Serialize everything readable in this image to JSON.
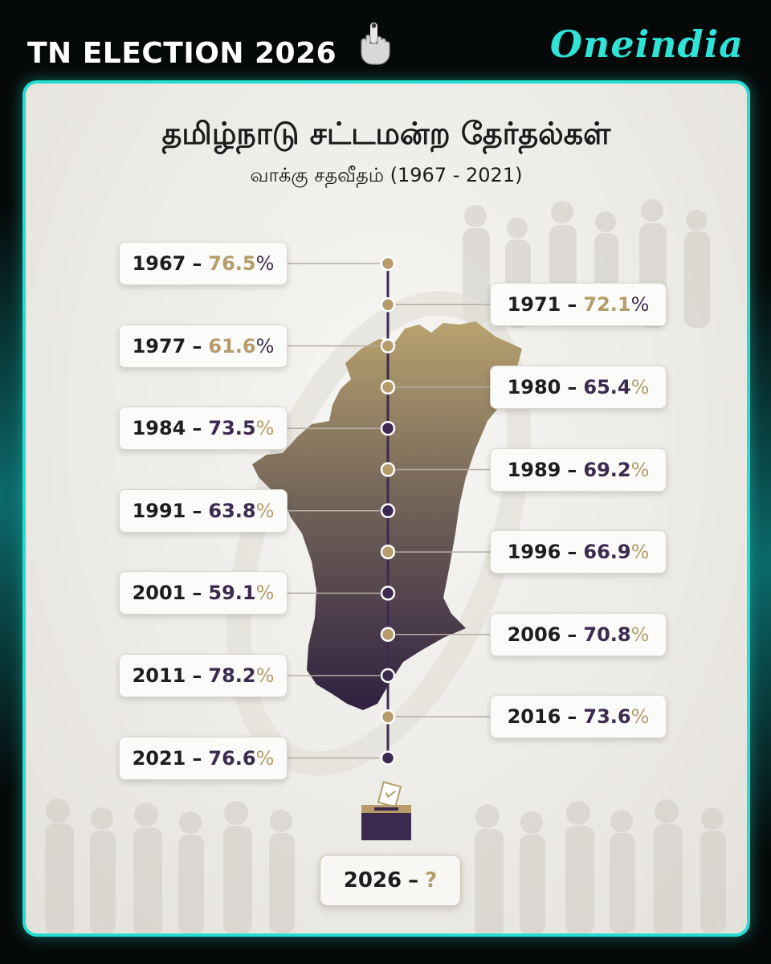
{
  "header": {
    "title": "TN ELECTION 2026",
    "brand": "Oneindia",
    "icon": "voting-hand-icon"
  },
  "title": "தமிழ்நாடு சட்டமன்ற தேர்தல்கள்",
  "subtitle": "வாக்கு சதவீதம் (1967 - 2021)",
  "colors": {
    "accent": "#25dcd0",
    "gold": "#b59c6a",
    "purple": "#3d2a4f"
  },
  "entries": [
    {
      "year": "1967",
      "pct": "76.5",
      "side": "left",
      "num_color": "gold"
    },
    {
      "year": "1971",
      "pct": "72.1",
      "side": "right",
      "num_color": "gold"
    },
    {
      "year": "1977",
      "pct": "61.6",
      "side": "left",
      "num_color": "gold"
    },
    {
      "year": "1980",
      "pct": "65.4",
      "side": "right",
      "num_color": "purple"
    },
    {
      "year": "1984",
      "pct": "73.5",
      "side": "left",
      "num_color": "purple"
    },
    {
      "year": "1989",
      "pct": "69.2",
      "side": "right",
      "num_color": "purple"
    },
    {
      "year": "1991",
      "pct": "63.8",
      "side": "left",
      "num_color": "purple"
    },
    {
      "year": "1996",
      "pct": "66.9",
      "side": "right",
      "num_color": "purple"
    },
    {
      "year": "2001",
      "pct": "59.1",
      "side": "left",
      "num_color": "purple"
    },
    {
      "year": "2006",
      "pct": "70.8",
      "side": "right",
      "num_color": "purple"
    },
    {
      "year": "2011",
      "pct": "78.2",
      "side": "left",
      "num_color": "purple"
    },
    {
      "year": "2016",
      "pct": "73.6",
      "side": "right",
      "num_color": "purple"
    },
    {
      "year": "2021",
      "pct": "76.6",
      "side": "left",
      "num_color": "purple"
    }
  ],
  "final": {
    "year": "2026",
    "value": "?",
    "icon": "ballot-box-icon"
  }
}
